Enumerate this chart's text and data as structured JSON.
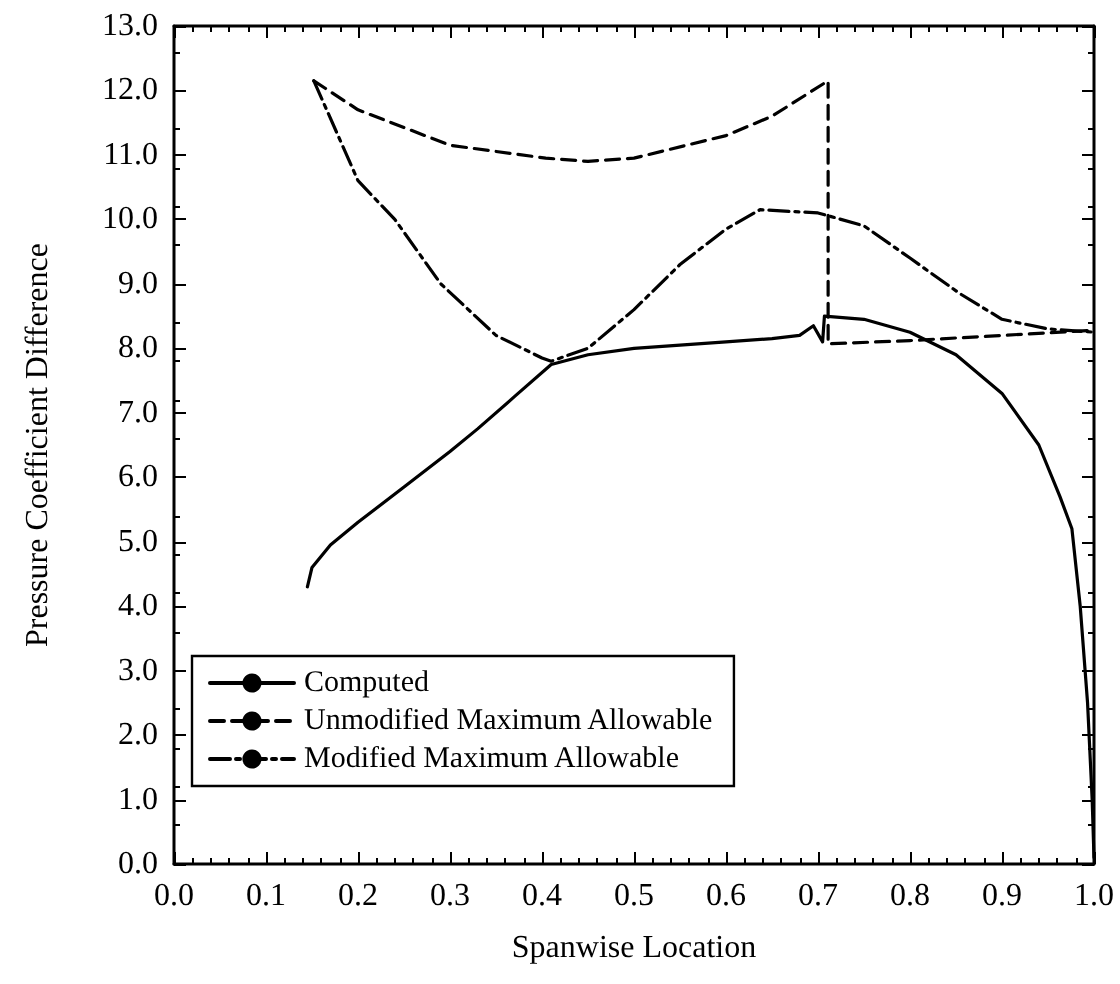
{
  "chart_data": {
    "type": "line",
    "xlabel": "Spanwise Location",
    "ylabel": "Pressure Coefficient Difference",
    "xlim": [
      0,
      1
    ],
    "ylim": [
      0,
      13
    ],
    "xticks": [
      {
        "value": 0,
        "label": "0.0"
      },
      {
        "value": 0.1,
        "label": "0.1"
      },
      {
        "value": 0.2,
        "label": "0.2"
      },
      {
        "value": 0.3,
        "label": "0.3"
      },
      {
        "value": 0.4,
        "label": "0.4"
      },
      {
        "value": 0.5,
        "label": "0.5"
      },
      {
        "value": 0.6,
        "label": "0.6"
      },
      {
        "value": 0.7,
        "label": "0.7"
      },
      {
        "value": 0.8,
        "label": "0.8"
      },
      {
        "value": 0.9,
        "label": "0.9"
      },
      {
        "value": 1,
        "label": "1.0"
      }
    ],
    "yticks": [
      {
        "value": 0,
        "label": "0.0"
      },
      {
        "value": 1,
        "label": "1.0"
      },
      {
        "value": 2,
        "label": "2.0"
      },
      {
        "value": 3,
        "label": "3.0"
      },
      {
        "value": 4,
        "label": "4.0"
      },
      {
        "value": 5,
        "label": "5.0"
      },
      {
        "value": 6,
        "label": "6.0"
      },
      {
        "value": 7,
        "label": "7.0"
      },
      {
        "value": 8,
        "label": "8.0"
      },
      {
        "value": 9,
        "label": "9.0"
      },
      {
        "value": 10,
        "label": "10.0"
      },
      {
        "value": 11,
        "label": "11.0"
      },
      {
        "value": 12,
        "label": "12.0"
      },
      {
        "value": 13,
        "label": "13.0"
      }
    ],
    "grid": false,
    "legend": "bottom left",
    "marker": "none",
    "series": [
      {
        "name": "Computed",
        "color": "#000000",
        "line_style": "solid",
        "x": [
          0.145,
          0.15,
          0.17,
          0.2,
          0.25,
          0.3,
          0.33,
          0.37,
          0.41,
          0.45,
          0.5,
          0.55,
          0.6,
          0.65,
          0.68,
          0.695,
          0.705,
          0.707,
          0.75,
          0.8,
          0.85,
          0.9,
          0.94,
          0.963,
          0.976,
          0.985,
          0.993,
          0.998,
          1.0
        ],
        "values": [
          4.3,
          4.6,
          4.95,
          5.3,
          5.85,
          6.4,
          6.75,
          7.25,
          7.75,
          7.9,
          8.0,
          8.05,
          8.1,
          8.15,
          8.2,
          8.35,
          8.1,
          8.5,
          8.45,
          8.25,
          7.9,
          7.3,
          6.5,
          5.7,
          5.2,
          4.0,
          2.5,
          1.0,
          0.1
        ]
      },
      {
        "name": "Unmodified Maximum Allowable",
        "color": "#000000",
        "line_style": "dashed",
        "x": [
          0.152,
          0.2,
          0.3,
          0.404,
          0.45,
          0.5,
          0.6,
          0.65,
          0.711,
          0.711,
          0.8,
          0.9,
          1.0
        ],
        "values": [
          12.15,
          11.7,
          11.15,
          10.95,
          10.9,
          10.95,
          11.3,
          11.6,
          12.15,
          8.07,
          8.12,
          8.2,
          8.28
        ]
      },
      {
        "name": "Modified Maximum Allowable",
        "color": "#000000",
        "line_style": "dashdot",
        "x": [
          0.152,
          0.2,
          0.24,
          0.29,
          0.35,
          0.4,
          0.41,
          0.45,
          0.5,
          0.55,
          0.6,
          0.637,
          0.7,
          0.75,
          0.8,
          0.854,
          0.9,
          0.95,
          1.0
        ],
        "values": [
          12.15,
          10.6,
          10.0,
          9.0,
          8.2,
          7.85,
          7.8,
          8.0,
          8.6,
          9.3,
          9.85,
          10.15,
          10.1,
          9.9,
          9.4,
          8.85,
          8.45,
          8.3,
          8.25
        ]
      }
    ]
  }
}
